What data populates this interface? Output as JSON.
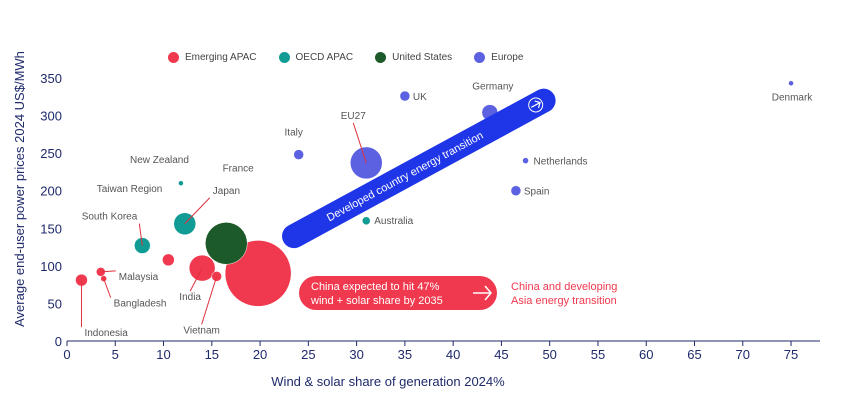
{
  "chart_data": {
    "type": "scatter",
    "xlabel": "Wind & solar share of generation 2024%",
    "ylabel": "Average end-user power prices 2024 US$/MWh",
    "xlim": [
      0,
      78
    ],
    "ylim": [
      0,
      350
    ],
    "x_ticks": [
      0,
      5,
      10,
      15,
      20,
      25,
      30,
      35,
      40,
      45,
      50,
      55,
      60,
      65,
      70,
      75
    ],
    "y_ticks": [
      0,
      50,
      100,
      150,
      200,
      250,
      300,
      350
    ],
    "legend": [
      {
        "name": "Emerging APAC",
        "color": "#f0394e"
      },
      {
        "name": "OECD APAC",
        "color": "#109b95"
      },
      {
        "name": "United States",
        "color": "#1d5a2a"
      },
      {
        "name": "Europe",
        "color": "#5b61e0"
      }
    ],
    "points": [
      {
        "label": "Indonesia",
        "group": "Emerging APAC",
        "x": 1.5,
        "y": 81,
        "size": 6
      },
      {
        "label": "Malaysia",
        "group": "Emerging APAC",
        "x": 3.5,
        "y": 92,
        "size": 4.5
      },
      {
        "label": "Bangladesh",
        "group": "Emerging APAC",
        "x": 3.8,
        "y": 83,
        "size": 3
      },
      {
        "label": "South Korea",
        "group": "OECD APAC",
        "x": 7.8,
        "y": 127,
        "size": 8
      },
      {
        "label": "Taiwan Region",
        "group": "Emerging APAC",
        "x": 10.5,
        "y": 108,
        "size": 6
      },
      {
        "label": "New Zealand",
        "group": "OECD APAC",
        "x": 11.8,
        "y": 210,
        "size": 2.5
      },
      {
        "label": "Japan",
        "group": "OECD APAC",
        "x": 12.2,
        "y": 156,
        "size": 11
      },
      {
        "label": "India",
        "group": "Emerging APAC",
        "x": 14.0,
        "y": 97,
        "size": 13
      },
      {
        "label": "Vietnam",
        "group": "Emerging APAC",
        "x": 15.5,
        "y": 86,
        "size": 5
      },
      {
        "label": "United States",
        "group": "United States",
        "x": 16.5,
        "y": 130,
        "size": 21
      },
      {
        "label": "China",
        "group": "Emerging APAC",
        "x": 19.8,
        "y": 90,
        "size": 33
      },
      {
        "label": "France",
        "group": "Europe",
        "x": 24.0,
        "y": 248,
        "size": 5
      },
      {
        "label": "Italy",
        "group": "Europe",
        "x": 24.0,
        "y": 248,
        "size": 5
      },
      {
        "label": "EU27",
        "group": "Europe",
        "x": 31.0,
        "y": 237,
        "size": 16
      },
      {
        "label": "Australia",
        "group": "OECD APAC",
        "x": 31.0,
        "y": 160,
        "size": 4
      },
      {
        "label": "UK",
        "group": "Europe",
        "x": 35.0,
        "y": 326,
        "size": 5
      },
      {
        "label": "Germany",
        "group": "Europe",
        "x": 43.8,
        "y": 304,
        "size": 8
      },
      {
        "label": "Netherlands",
        "group": "Europe",
        "x": 47.5,
        "y": 240,
        "size": 3
      },
      {
        "label": "Spain",
        "group": "Europe",
        "x": 46.5,
        "y": 200,
        "size": 5
      },
      {
        "label": "Denmark",
        "group": "Europe",
        "x": 75.0,
        "y": 343,
        "size": 2.5
      }
    ],
    "annotations": {
      "developed_arrow": "Developed country energy transition",
      "china_box": "China expected to hit 47% wind + solar share by 2035",
      "china_box_line1": "China expected to hit 47%",
      "china_box_line2": "wind + solar share by 2035",
      "developing_line1": "China and developing",
      "developing_line2": "Asia energy transition"
    }
  }
}
